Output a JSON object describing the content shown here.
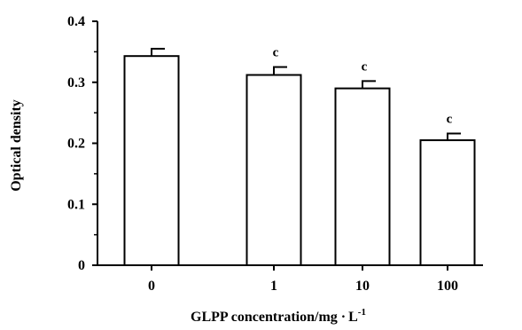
{
  "chart_data": {
    "type": "bar",
    "title": "",
    "xlabel": "GLPP concentration/mg",
    "xlabel_unit": "L",
    "xlabel_unit_exp": "-1",
    "ylabel": "Optical density",
    "categories": [
      "0",
      "1",
      "10",
      "100"
    ],
    "values": [
      0.343,
      0.312,
      0.29,
      0.205
    ],
    "errors": [
      0.012,
      0.013,
      0.012,
      0.011
    ],
    "annotations": [
      "",
      "c",
      "c",
      "c"
    ],
    "ylim": [
      0,
      0.4
    ],
    "yticks": [
      0,
      0.1,
      0.2,
      0.3,
      0.4
    ],
    "ytick_labels": [
      "0",
      "0.1",
      "0.2",
      "0.3",
      "0.4"
    ],
    "grid": false,
    "legend": "none",
    "bar_fill": "#ffffff",
    "stroke": "#000000"
  }
}
